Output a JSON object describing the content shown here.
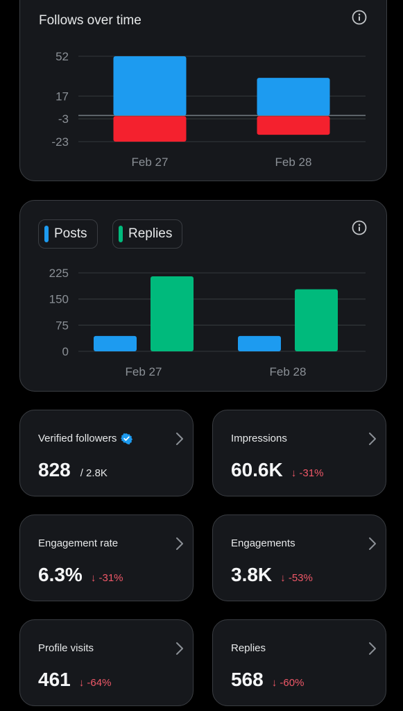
{
  "colors": {
    "positive": "#1d9bf0",
    "negative": "#f4212e",
    "replies": "#00ba7c",
    "down": "#f05868",
    "verified": "#1d9bf0"
  },
  "follows_card": {
    "title": "Follows over time",
    "icon": "info-icon"
  },
  "posts_card": {
    "icon": "info-icon",
    "legend": [
      {
        "label": "Posts",
        "color": "#1d9bf0"
      },
      {
        "label": "Replies",
        "color": "#00ba7c"
      }
    ]
  },
  "chart_data": [
    {
      "type": "bar",
      "title": "Follows over time",
      "categories": [
        "Feb 27",
        "Feb 28"
      ],
      "series": [
        {
          "values": [
            52,
            33
          ]
        },
        {
          "values": [
            -23,
            -17
          ]
        }
      ],
      "yticks": [
        52,
        17,
        -3,
        -23
      ],
      "ylim": [
        -23,
        52
      ],
      "stacked": true,
      "grid": true
    },
    {
      "type": "bar",
      "categories": [
        "Feb 27",
        "Feb 28"
      ],
      "series": [
        {
          "name": "Posts",
          "values": [
            44,
            44
          ]
        },
        {
          "name": "Replies",
          "values": [
            215,
            178
          ]
        }
      ],
      "yticks": [
        225,
        150,
        75,
        0
      ],
      "ylim": [
        0,
        225
      ],
      "grid": true,
      "legend": "top-left"
    }
  ],
  "stats": [
    {
      "label": "Verified followers",
      "value": "828",
      "sub": "/ 2.8K",
      "verified": true
    },
    {
      "label": "Impressions",
      "value": "60.6K",
      "change": "↓ -31%"
    },
    {
      "label": "Engagement rate",
      "value": "6.3%",
      "change": "↓ -31%"
    },
    {
      "label": "Engagements",
      "value": "3.8K",
      "change": "↓ -53%"
    },
    {
      "label": "Profile visits",
      "value": "461",
      "change": "↓ -64%"
    },
    {
      "label": "Replies",
      "value": "568",
      "change": "↓ -60%"
    }
  ]
}
